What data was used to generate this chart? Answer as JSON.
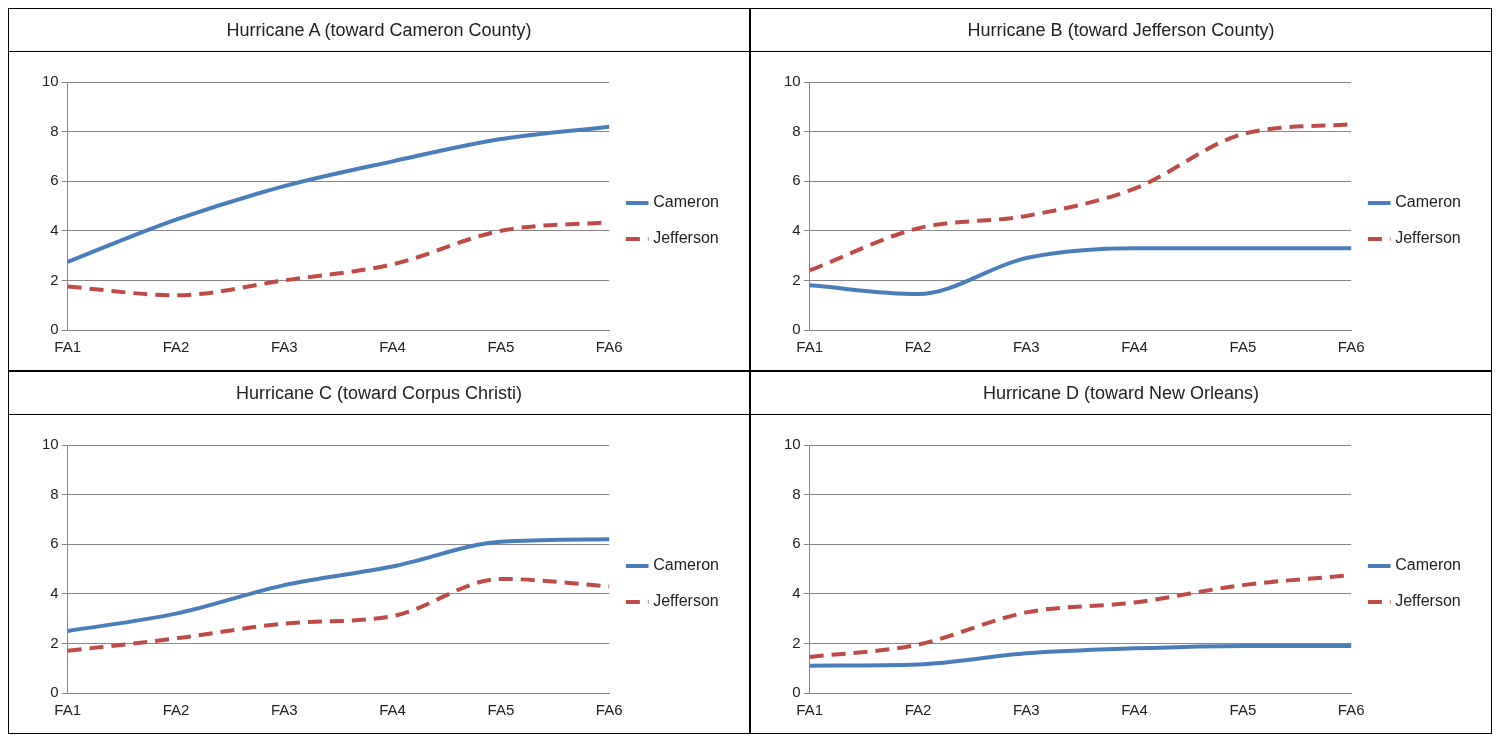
{
  "chart_data": [
    {
      "type": "line",
      "title": "Hurricane A (toward Cameron County)",
      "categories": [
        "FA1",
        "FA2",
        "FA3",
        "FA4",
        "FA5",
        "FA6"
      ],
      "ylim": [
        0,
        10
      ],
      "yticks": [
        0,
        2,
        4,
        6,
        8,
        10
      ],
      "grid": "y",
      "legend": "right",
      "series": [
        {
          "name": "Cameron",
          "color": "#4a7ebb",
          "line_style": "solid",
          "values": [
            2.75,
            4.45,
            5.8,
            6.8,
            7.7,
            8.2
          ]
        },
        {
          "name": "Jefferson",
          "color": "#be4b48",
          "line_style": "dashed",
          "values": [
            1.75,
            1.4,
            2.0,
            2.65,
            4.0,
            4.35
          ]
        }
      ]
    },
    {
      "type": "line",
      "title": "Hurricane B (toward Jefferson County)",
      "categories": [
        "FA1",
        "FA2",
        "FA3",
        "FA4",
        "FA5",
        "FA6"
      ],
      "ylim": [
        0,
        10
      ],
      "yticks": [
        0,
        2,
        4,
        6,
        8,
        10
      ],
      "grid": "y",
      "legend": "right",
      "series": [
        {
          "name": "Cameron",
          "color": "#4a7ebb",
          "line_style": "solid",
          "values": [
            1.8,
            1.45,
            2.9,
            3.3,
            3.3,
            3.3
          ]
        },
        {
          "name": "Jefferson",
          "color": "#be4b48",
          "line_style": "dashed",
          "values": [
            2.4,
            4.1,
            4.6,
            5.7,
            7.9,
            8.3
          ]
        }
      ]
    },
    {
      "type": "line",
      "title": "Hurricane C (toward Corpus Christi)",
      "categories": [
        "FA1",
        "FA2",
        "FA3",
        "FA4",
        "FA5",
        "FA6"
      ],
      "ylim": [
        0,
        10
      ],
      "yticks": [
        0,
        2,
        4,
        6,
        8,
        10
      ],
      "grid": "y",
      "legend": "right",
      "series": [
        {
          "name": "Cameron",
          "color": "#4a7ebb",
          "line_style": "solid",
          "values": [
            2.5,
            3.2,
            4.35,
            5.1,
            6.1,
            6.2
          ]
        },
        {
          "name": "Jefferson",
          "color": "#be4b48",
          "line_style": "dashed",
          "values": [
            1.7,
            2.2,
            2.8,
            3.1,
            4.6,
            4.3
          ]
        }
      ]
    },
    {
      "type": "line",
      "title": "Hurricane D (toward New Orleans)",
      "categories": [
        "FA1",
        "FA2",
        "FA3",
        "FA4",
        "FA5",
        "FA6"
      ],
      "ylim": [
        0,
        10
      ],
      "yticks": [
        0,
        2,
        4,
        6,
        8,
        10
      ],
      "grid": "y",
      "legend": "right",
      "series": [
        {
          "name": "Cameron",
          "color": "#4a7ebb",
          "line_style": "solid",
          "values": [
            1.1,
            1.15,
            1.6,
            1.8,
            1.9,
            1.9
          ]
        },
        {
          "name": "Jefferson",
          "color": "#be4b48",
          "line_style": "dashed",
          "values": [
            1.45,
            1.95,
            3.25,
            3.65,
            4.35,
            4.75
          ]
        }
      ]
    }
  ]
}
